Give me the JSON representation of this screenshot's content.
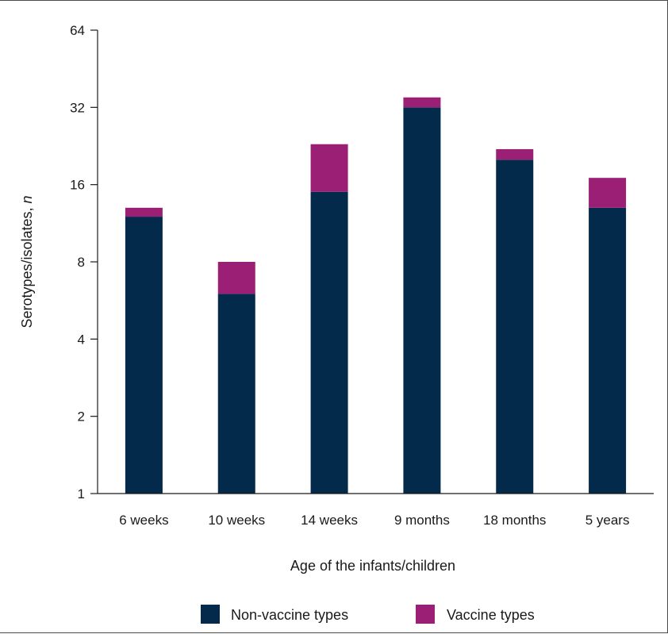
{
  "chart_data": {
    "type": "bar",
    "stacked": true,
    "y_scale": "log2",
    "xlabel": "Age of the infants/children",
    "ylabel_main": "Serotypes/isolates, ",
    "ylabel_italic": "n",
    "categories": [
      "6 weeks",
      "10 weeks",
      "14 weeks",
      "9 months",
      "18 months",
      "5 years"
    ],
    "series": [
      {
        "name": "Non-vaccine types",
        "color": "#032a4a",
        "values": [
          12,
          6,
          15,
          32,
          20,
          13
        ]
      },
      {
        "name": "Vaccine types",
        "color": "#9b1f75",
        "values": [
          1,
          2,
          8,
          3,
          2,
          4
        ]
      }
    ],
    "ylim": [
      1,
      64
    ],
    "yticks": [
      1,
      2,
      4,
      8,
      16,
      32,
      64
    ],
    "ytick_labels": [
      "1",
      "2",
      "4",
      "8",
      "16",
      "32",
      "64"
    ],
    "grid": false,
    "legend_position": "bottom"
  }
}
